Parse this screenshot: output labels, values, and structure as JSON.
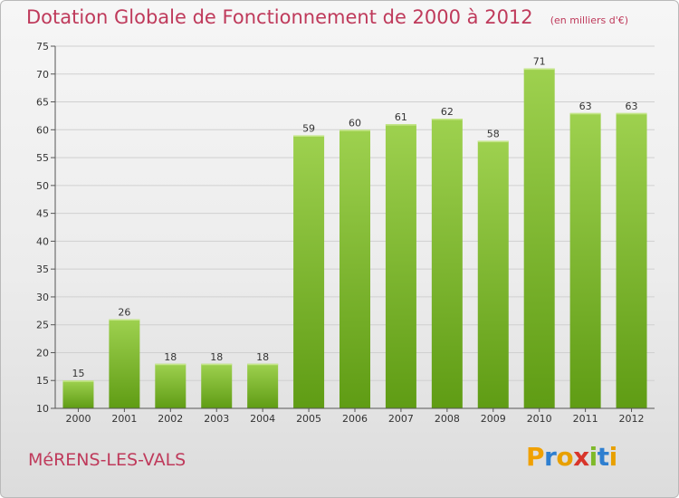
{
  "title": "Dotation Globale de Fonctionnement de 2000 à 2012",
  "subtitle": "(en milliers d'€)",
  "place_name": "MéRENS-LES-VALS",
  "logo_text": "Proxiti",
  "colors": {
    "title": "#bf3a5b",
    "bar_top": "#9ed14f",
    "bar_bottom": "#5f9c14",
    "grid": "#d0d0d0",
    "axis": "#555555",
    "logo_letters": [
      "#f0a000",
      "#2f7fd0",
      "#e8a000",
      "#d8352a",
      "#7fb92a",
      "#2f7fd0",
      "#e8a000"
    ]
  },
  "chart_data": {
    "type": "bar",
    "title": "Dotation Globale de Fonctionnement de 2000 à 2012",
    "subtitle": "(en milliers d'€)",
    "categories": [
      "2000",
      "2001",
      "2002",
      "2003",
      "2004",
      "2005",
      "2006",
      "2007",
      "2008",
      "2009",
      "2010",
      "2011",
      "2012"
    ],
    "values": [
      15,
      26,
      18,
      18,
      18,
      59,
      60,
      61,
      62,
      58,
      71,
      63,
      63
    ],
    "ylim": [
      10,
      75
    ],
    "yticks": [
      10,
      15,
      20,
      25,
      30,
      35,
      40,
      45,
      50,
      55,
      60,
      65,
      70,
      75
    ],
    "grid": true,
    "data_labels": true
  }
}
